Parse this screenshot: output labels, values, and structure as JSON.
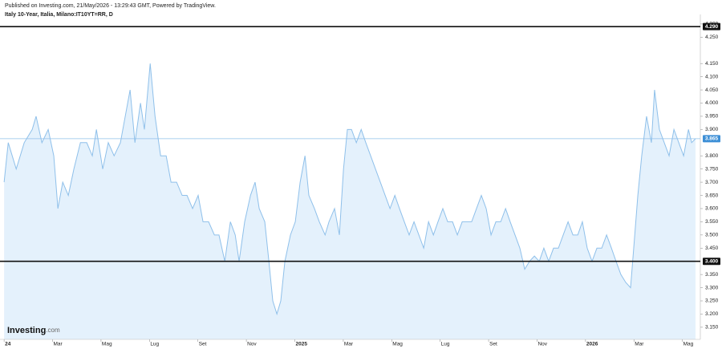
{
  "header": {
    "published": "Published on Investing.com, 21/May/2026 - 13:29:43 GMT, Powered by TradingView."
  },
  "logo": {
    "main": "Investing",
    "suffix": ".com"
  },
  "chart_data": {
    "type": "area",
    "title": "Italy 10-Year, Italia, Milano:IT10YT=RR, D",
    "color": "#8fc0ea",
    "fill": "#e4f1fc",
    "x": [
      0,
      0.17,
      0.5,
      0.83,
      1.16,
      1.32,
      1.56,
      1.82,
      2.05,
      2.22,
      2.42,
      2.65,
      2.88,
      3.15,
      3.41,
      3.64,
      3.81,
      4.07,
      4.3,
      4.54,
      4.8,
      5,
      5.2,
      5.4,
      5.63,
      5.79,
      6.03,
      6.23,
      6.46,
      6.69,
      6.89,
      7.12,
      7.35,
      7.55,
      7.78,
      8.01,
      8.21,
      8.44,
      8.68,
      8.87,
      9.11,
      9.34,
      9.54,
      9.7,
      9.93,
      10.17,
      10.36,
      10.53,
      10.76,
      10.93,
      11.09,
      11.26,
      11.42,
      11.59,
      11.82,
      12.02,
      12.22,
      12.42,
      12.58,
      12.81,
      13.01,
      13.25,
      13.41,
      13.64,
      13.84,
      14.01,
      14.17,
      14.34,
      14.54,
      14.74,
      14.93,
      15.13,
      15.33,
      15.53,
      15.73,
      15.93,
      16.13,
      16.32,
      16.52,
      16.72,
      16.92,
      17.12,
      17.32,
      17.52,
      17.72,
      17.91,
      18.11,
      18.31,
      18.51,
      18.71,
      18.91,
      19.11,
      19.3,
      19.5,
      19.7,
      19.9,
      20.1,
      20.3,
      20.5,
      20.7,
      20.89,
      21.09,
      21.29,
      21.49,
      21.69,
      21.89,
      22.09,
      22.28,
      22.48,
      22.68,
      22.88,
      23.08,
      23.28,
      23.48,
      23.68,
      23.87,
      24.07,
      24.27,
      24.47,
      24.67,
      24.87,
      25.07,
      25.26,
      25.46,
      25.66,
      25.86,
      25.99,
      26.16,
      26.32,
      26.52,
      26.72,
      26.85,
      27.05,
      27.25,
      27.45,
      27.65,
      27.85,
      28.05,
      28.25,
      28.38,
      28.54
    ],
    "values": [
      3.7,
      3.85,
      3.75,
      3.85,
      3.9,
      3.95,
      3.85,
      3.9,
      3.8,
      3.6,
      3.7,
      3.65,
      3.75,
      3.85,
      3.85,
      3.8,
      3.9,
      3.75,
      3.85,
      3.8,
      3.85,
      3.95,
      4.05,
      3.85,
      4,
      3.9,
      4.15,
      3.95,
      3.8,
      3.8,
      3.7,
      3.7,
      3.65,
      3.65,
      3.6,
      3.65,
      3.55,
      3.55,
      3.5,
      3.5,
      3.4,
      3.55,
      3.5,
      3.4,
      3.55,
      3.65,
      3.7,
      3.6,
      3.55,
      3.4,
      3.25,
      3.2,
      3.25,
      3.4,
      3.5,
      3.55,
      3.7,
      3.8,
      3.65,
      3.6,
      3.55,
      3.5,
      3.55,
      3.6,
      3.5,
      3.75,
      3.9,
      3.9,
      3.85,
      3.9,
      3.85,
      3.8,
      3.75,
      3.7,
      3.65,
      3.6,
      3.65,
      3.6,
      3.55,
      3.5,
      3.55,
      3.5,
      3.45,
      3.55,
      3.5,
      3.55,
      3.6,
      3.55,
      3.55,
      3.5,
      3.55,
      3.55,
      3.55,
      3.6,
      3.65,
      3.6,
      3.5,
      3.55,
      3.55,
      3.6,
      3.55,
      3.5,
      3.45,
      3.37,
      3.4,
      3.42,
      3.4,
      3.45,
      3.4,
      3.45,
      3.45,
      3.5,
      3.55,
      3.5,
      3.5,
      3.55,
      3.45,
      3.4,
      3.45,
      3.45,
      3.5,
      3.45,
      3.4,
      3.35,
      3.32,
      3.3,
      3.45,
      3.65,
      3.8,
      3.95,
      3.85,
      4.05,
      3.9,
      3.85,
      3.8,
      3.9,
      3.85,
      3.8,
      3.9,
      3.85,
      3.865
    ],
    "xlim": [
      -0.17,
      28.74
    ],
    "xticks": [
      {
        "value": 0,
        "label": "24"
      },
      {
        "value": 2,
        "label": "Mar"
      },
      {
        "value": 4,
        "label": "Mag"
      },
      {
        "value": 6,
        "label": "Lug"
      },
      {
        "value": 8,
        "label": "Set"
      },
      {
        "value": 10,
        "label": "Nov"
      },
      {
        "value": 12,
        "label": "2025"
      },
      {
        "value": 14,
        "label": "Mar"
      },
      {
        "value": 16,
        "label": "Mag"
      },
      {
        "value": 18,
        "label": "Lug"
      },
      {
        "value": 20,
        "label": "Set"
      },
      {
        "value": 22,
        "label": "Nov"
      },
      {
        "value": 24,
        "label": "2026"
      },
      {
        "value": 26,
        "label": "Mar"
      },
      {
        "value": 28,
        "label": "Mag"
      }
    ],
    "ylim": [
      3.104,
      4.324
    ],
    "yticks": [
      {
        "value": 3.15,
        "label": "3.150"
      },
      {
        "value": 3.2,
        "label": "3.200"
      },
      {
        "value": 3.25,
        "label": "3.250"
      },
      {
        "value": 3.3,
        "label": "3.300"
      },
      {
        "value": 3.35,
        "label": "3.350"
      },
      {
        "value": 3.45,
        "label": "3.450"
      },
      {
        "value": 3.5,
        "label": "3.500"
      },
      {
        "value": 3.55,
        "label": "3.550"
      },
      {
        "value": 3.6,
        "label": "3.600"
      },
      {
        "value": 3.65,
        "label": "3.650"
      },
      {
        "value": 3.7,
        "label": "3.700"
      },
      {
        "value": 3.75,
        "label": "3.750"
      },
      {
        "value": 3.8,
        "label": "3.800"
      },
      {
        "value": 3.9,
        "label": "3.900"
      },
      {
        "value": 3.95,
        "label": "3.950"
      },
      {
        "value": 4,
        "label": "4.000"
      },
      {
        "value": 4.05,
        "label": "4.050"
      },
      {
        "value": 4.1,
        "label": "4.100"
      },
      {
        "value": 4.15,
        "label": "4.150"
      },
      {
        "value": 4.25,
        "label": "4.250"
      },
      {
        "value": 4.3,
        "label": "4.300"
      }
    ],
    "levels": [
      {
        "value": 4.29,
        "label": "4.290"
      },
      {
        "value": 3.4,
        "label": "3.400"
      }
    ],
    "last_price": 3.865,
    "last_price_color": "#3d8fd6"
  }
}
